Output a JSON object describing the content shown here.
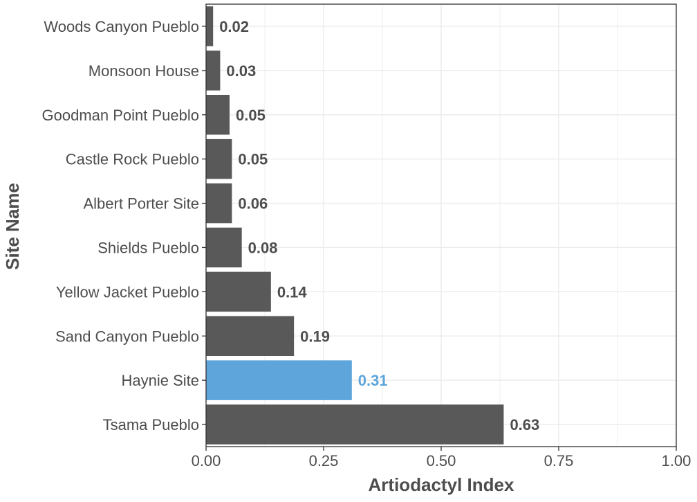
{
  "chart_data": {
    "type": "bar",
    "orientation": "horizontal",
    "xlabel": "Artiodactyl Index",
    "ylabel": "Site Name",
    "xlim": [
      0,
      1
    ],
    "xticks": [
      "0.00",
      "0.25",
      "0.50",
      "0.75",
      "1.00"
    ],
    "grid": true,
    "categories": [
      "Woods Canyon Pueblo",
      "Monsoon House",
      "Goodman Point Pueblo",
      "Castle Rock Pueblo",
      "Albert Porter Site",
      "Shields Pueblo",
      "Yellow Jacket Pueblo",
      "Sand Canyon Pueblo",
      "Haynie Site",
      "Tsama Pueblo"
    ],
    "values": [
      0.015,
      0.03,
      0.05,
      0.055,
      0.055,
      0.076,
      0.138,
      0.187,
      0.31,
      0.633
    ],
    "value_labels": [
      "0.02",
      "0.03",
      "0.05",
      "0.05",
      "0.06",
      "0.08",
      "0.14",
      "0.19",
      "0.31",
      "0.63"
    ],
    "highlight": "Haynie Site",
    "colors": {
      "bar": "#595959",
      "highlight": "#5DA5DA",
      "grid": "#EBEBEB",
      "text": "#4D4D4D",
      "axis": "#333333"
    }
  }
}
